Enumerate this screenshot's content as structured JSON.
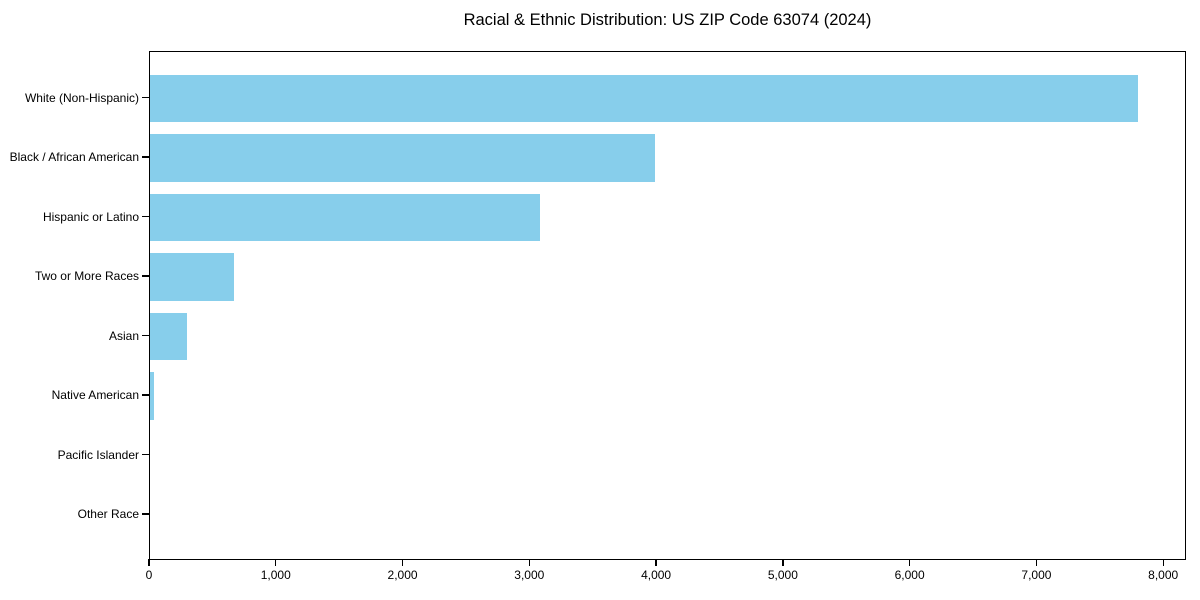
{
  "chart_data": {
    "type": "bar",
    "orientation": "horizontal",
    "title": "Racial & Ethnic Distribution: US ZIP Code 63074 (2024)",
    "categories": [
      "White (Non-Hispanic)",
      "Black / African American",
      "Hispanic or Latino",
      "Two or More Races",
      "Asian",
      "Native American",
      "Pacific Islander",
      "Other Race"
    ],
    "values": [
      7790,
      3980,
      3075,
      665,
      290,
      30,
      0,
      0
    ],
    "xlabel": "",
    "ylabel": "",
    "xlim": [
      0,
      8180
    ],
    "xticks": [
      0,
      1000,
      2000,
      3000,
      4000,
      5000,
      6000,
      7000,
      8000
    ],
    "xtick_labels": [
      "0",
      "1,000",
      "2,000",
      "3,000",
      "4,000",
      "5,000",
      "6,000",
      "7,000",
      "8,000"
    ],
    "bar_color": "#87CEEB",
    "grid": false,
    "legend": null
  }
}
